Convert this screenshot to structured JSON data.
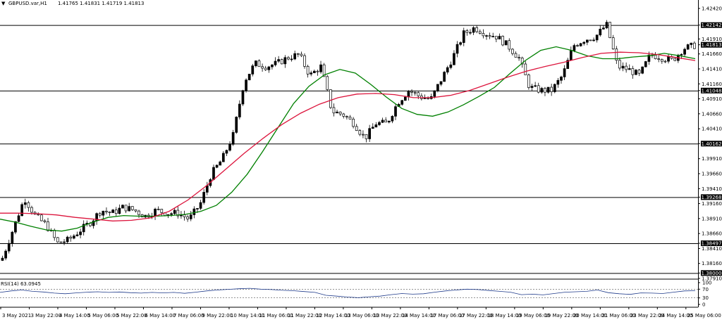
{
  "header": {
    "menu_glyph": "▼",
    "symbol_text": "GBPUSD.var,H1",
    "ohlc_text": "1.41765 1.41831 1.41719 1.41813"
  },
  "indicator": {
    "label": "RSI(14) 63.0945"
  },
  "chart_data": {
    "type": "candlestick",
    "symbol": "GBPUSD.var",
    "timeframe": "H1",
    "price_axis": {
      "min": 1.3791,
      "max": 1.4242,
      "tick_labels": [
        "1.42420",
        "1.42142",
        "1.41910",
        "1.41813",
        "1.41660",
        "1.41410",
        "1.41160",
        "1.41048",
        "1.40910",
        "1.40660",
        "1.40410",
        "1.40162",
        "1.39910",
        "1.39660",
        "1.39410",
        "1.39268",
        "1.39160",
        "1.38910",
        "1.38660",
        "1.38497",
        "1.38410",
        "1.38160",
        "1.38000",
        "1.37910"
      ],
      "highlighted_labels": [
        "1.42142",
        "1.41813",
        "1.41048",
        "1.40162",
        "1.39268",
        "1.38497",
        "1.38000"
      ]
    },
    "horizontal_levels": [
      1.42142,
      1.41048,
      1.40162,
      1.39268,
      1.38497,
      1.38
    ],
    "last_price": 1.41813,
    "time_labels": [
      "3 May 2021",
      "3 May 22:00",
      "4 May 14:00",
      "5 May 06:00",
      "5 May 22:00",
      "6 May 14:00",
      "7 May 06:00",
      "9 May 22:00",
      "10 May 14:00",
      "11 May 06:00",
      "11 May 22:00",
      "12 May 14:00",
      "13 May 06:00",
      "13 May 22:00",
      "14 May 14:00",
      "17 May 06:00",
      "17 May 22:00",
      "18 May 14:00",
      "19 May 06:00",
      "19 May 22:00",
      "20 May 14:00",
      "21 May 06:00",
      "23 May 22:00",
      "24 May 14:00",
      "25 May 06:00"
    ],
    "close_path": [
      1.3825,
      1.3875,
      1.3925,
      1.3895,
      1.388,
      1.385,
      1.3855,
      1.387,
      1.3885,
      1.3905,
      1.39,
      1.391,
      1.3905,
      1.3895,
      1.3905,
      1.39,
      1.39,
      1.389,
      1.3915,
      1.3965,
      1.399,
      1.403,
      1.412,
      1.415,
      1.4145,
      1.415,
      1.416,
      1.4165,
      1.413,
      1.4145,
      1.407,
      1.4065,
      1.405,
      1.4025,
      1.405,
      1.405,
      1.4085,
      1.4105,
      1.4095,
      1.409,
      1.4125,
      1.416,
      1.42,
      1.421,
      1.42,
      1.4195,
      1.418,
      1.416,
      1.411,
      1.4105,
      1.4105,
      1.413,
      1.418,
      1.419,
      1.4195,
      1.4215,
      1.4145,
      1.414,
      1.413,
      1.4165,
      1.416,
      1.4155,
      1.4175,
      1.418
    ],
    "series": [
      {
        "name": "",
        "color": "#008000",
        "values": [
          1.389,
          1.3885,
          1.3878,
          1.3872,
          1.387,
          1.3875,
          1.3885,
          1.3893,
          1.3896,
          1.3895,
          1.3895,
          1.3896,
          1.3898,
          1.3903,
          1.3913,
          1.3935,
          1.3965,
          1.4003,
          1.4043,
          1.4083,
          1.4112,
          1.4131,
          1.414,
          1.4134,
          1.4115,
          1.4094,
          1.4075,
          1.4065,
          1.4062,
          1.4069,
          1.4081,
          1.4095,
          1.411,
          1.4133,
          1.4155,
          1.4172,
          1.4178,
          1.4172,
          1.4163,
          1.4158,
          1.4158,
          1.4161,
          1.4163,
          1.4167,
          1.4163,
          1.4158
        ]
      },
      {
        "name": "",
        "color": "#dc143c",
        "values": [
          1.39,
          1.39,
          1.3899,
          1.3897,
          1.3893,
          1.389,
          1.3887,
          1.3888,
          1.3892,
          1.3903,
          1.3922,
          1.3946,
          1.3973,
          1.4,
          1.4025,
          1.4048,
          1.4067,
          1.4082,
          1.4093,
          1.4099,
          1.41,
          1.4098,
          1.4093,
          1.4093,
          1.4097,
          1.4105,
          1.4116,
          1.4127,
          1.4137,
          1.4145,
          1.4152,
          1.416,
          1.4167,
          1.4169,
          1.4168,
          1.4165,
          1.416,
          1.4155
        ]
      }
    ],
    "rsi": {
      "name": "RSI(14)",
      "last": 63.0945,
      "levels": [
        70,
        30
      ],
      "axis_labels": [
        "100",
        "70",
        "30",
        "0"
      ],
      "values": [
        55,
        62,
        66,
        60,
        57,
        52,
        49,
        53,
        56,
        58,
        55,
        57,
        54,
        52,
        55,
        53,
        55,
        51,
        56,
        62,
        66,
        69,
        72,
        74,
        70,
        68,
        65,
        63,
        59,
        55,
        42,
        38,
        34,
        31,
        35,
        38,
        45,
        50,
        47,
        49,
        56,
        62,
        66,
        70,
        68,
        64,
        60,
        56,
        45,
        47,
        44,
        50,
        56,
        58,
        60,
        66,
        54,
        49,
        46,
        53,
        52,
        50,
        56,
        62,
        63
      ]
    }
  }
}
